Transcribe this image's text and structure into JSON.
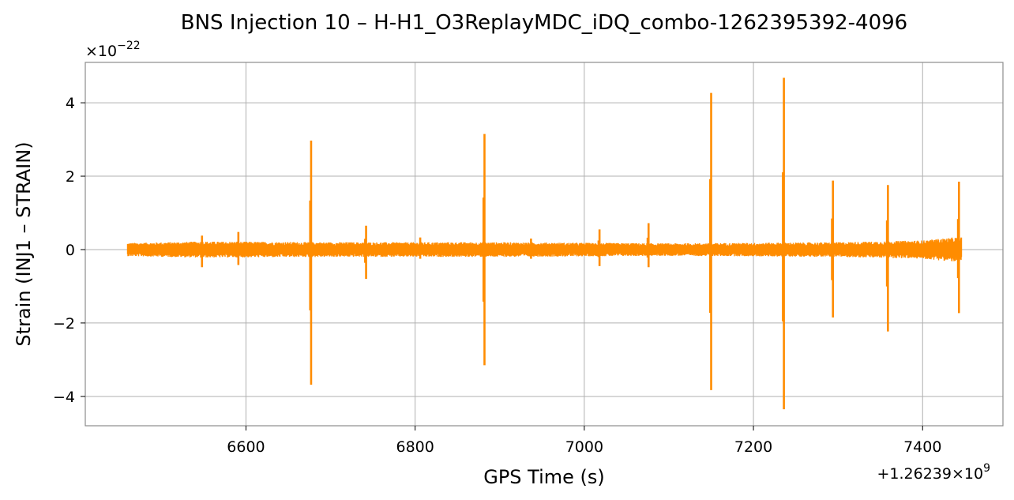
{
  "chart_data": {
    "type": "line",
    "title": "BNS Injection 10 – H-H1_O3ReplayMDC_iDQ_combo-1262395392-4096",
    "xlabel": "GPS Time (s)",
    "ylabel": "Strain (INJ1 – STRAIN)",
    "y_multiplier_label": "×10",
    "y_multiplier_exponent": "−22",
    "x_offset_label": "+1.26239×10",
    "x_offset_exponent": "9",
    "x_ticks": [
      6600,
      6800,
      7000,
      7200,
      7400
    ],
    "x_tick_labels": [
      "6600",
      "6800",
      "7000",
      "7200",
      "7400"
    ],
    "y_ticks": [
      -4,
      -2,
      0,
      2,
      4
    ],
    "y_tick_labels": [
      "−4",
      "−2",
      "0",
      "2",
      "4"
    ],
    "xlim": [
      6410,
      7495
    ],
    "ylim": [
      -4.8,
      5.1
    ],
    "grid": true,
    "color": "#ff8c00",
    "series": [
      {
        "x_range": [
          6460,
          7446
        ],
        "baseline_band": [
          [
            6460,
            0.18
          ],
          [
            6550,
            0.22
          ],
          [
            6700,
            0.2
          ],
          [
            6900,
            0.2
          ],
          [
            7100,
            0.17
          ],
          [
            7300,
            0.2
          ],
          [
            7400,
            0.25
          ],
          [
            7446,
            0.35
          ]
        ],
        "spikes": [
          {
            "x": 6548,
            "ymax": 0.38,
            "ymin": -0.48
          },
          {
            "x": 6591,
            "ymax": 0.48,
            "ymin": -0.42
          },
          {
            "x": 6677,
            "ymax": 2.97,
            "ymin": -3.68
          },
          {
            "x": 6742,
            "ymax": 0.65,
            "ymin": -0.8
          },
          {
            "x": 6806,
            "ymax": 0.33,
            "ymin": -0.25
          },
          {
            "x": 6882,
            "ymax": 3.15,
            "ymin": -3.15
          },
          {
            "x": 6937,
            "ymax": 0.3,
            "ymin": -0.25
          },
          {
            "x": 7018,
            "ymax": 0.55,
            "ymin": -0.45
          },
          {
            "x": 7076,
            "ymax": 0.72,
            "ymin": -0.48
          },
          {
            "x": 7150,
            "ymax": 4.27,
            "ymin": -3.83
          },
          {
            "x": 7236,
            "ymax": 4.68,
            "ymin": -4.35
          },
          {
            "x": 7294,
            "ymax": 1.88,
            "ymin": -1.85
          },
          {
            "x": 7359,
            "ymax": 1.76,
            "ymin": -2.23
          },
          {
            "x": 7443,
            "ymax": 1.85,
            "ymin": -1.73
          }
        ]
      }
    ]
  }
}
